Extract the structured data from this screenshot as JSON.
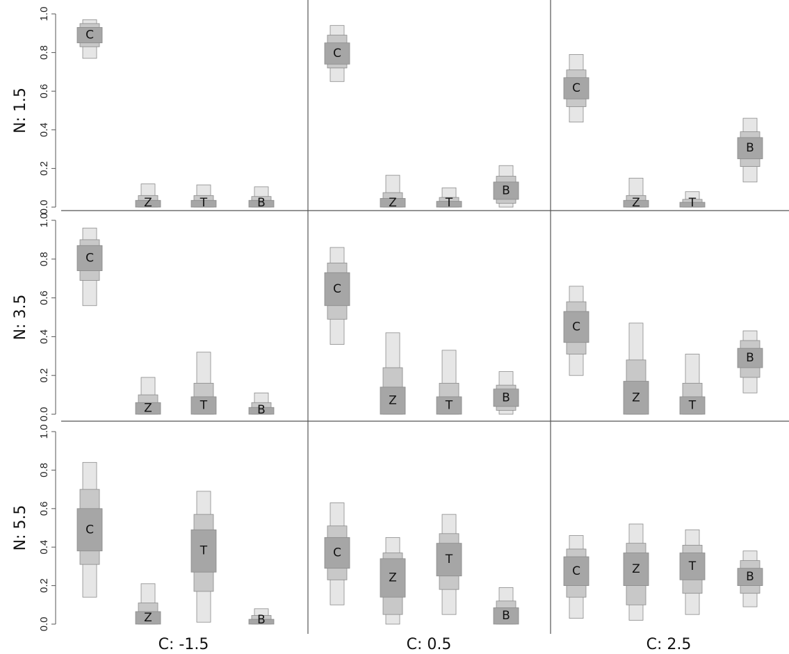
{
  "chart_data": {
    "type": "box-percentile-grid",
    "categories": [
      "C",
      "Z",
      "T",
      "B"
    ],
    "columns": [
      "C: -1.5",
      "C: 0.5",
      "C: 2.5"
    ],
    "rows": [
      "N: 1.5",
      "N: 3.5",
      "N: 5.5"
    ],
    "y_ticks": [
      "0.0",
      "0.2",
      "0.4",
      "0.6",
      "0.8",
      "1.0"
    ],
    "ylim": [
      0,
      1
    ],
    "colors": {
      "outer": "#e6e6e6",
      "middle": "#c8c8c8",
      "inner": "#a6a6a6",
      "stroke": "#8a8a8a",
      "divider": "#555555"
    },
    "panels": [
      [
        [
          {
            "label": "C",
            "outer": [
              0.77,
              0.97
            ],
            "middle": [
              0.83,
              0.95
            ],
            "inner": [
              0.85,
              0.93
            ]
          },
          {
            "label": "Z",
            "outer": [
              0.0,
              0.12
            ],
            "middle": [
              0.0,
              0.06
            ],
            "inner": [
              0.0,
              0.035
            ]
          },
          {
            "label": "T",
            "outer": [
              0.0,
              0.115
            ],
            "middle": [
              0.0,
              0.06
            ],
            "inner": [
              0.0,
              0.035
            ]
          },
          {
            "label": "B",
            "outer": [
              0.0,
              0.105
            ],
            "middle": [
              0.0,
              0.055
            ],
            "inner": [
              0.0,
              0.035
            ]
          }
        ],
        [
          {
            "label": "C",
            "outer": [
              0.65,
              0.94
            ],
            "middle": [
              0.72,
              0.89
            ],
            "inner": [
              0.74,
              0.85
            ]
          },
          {
            "label": "Z",
            "outer": [
              0.0,
              0.165
            ],
            "middle": [
              0.0,
              0.075
            ],
            "inner": [
              0.0,
              0.045
            ]
          },
          {
            "label": "T",
            "outer": [
              0.0,
              0.1
            ],
            "middle": [
              0.0,
              0.05
            ],
            "inner": [
              0.0,
              0.03
            ]
          },
          {
            "label": "B",
            "outer": [
              0.0,
              0.215
            ],
            "middle": [
              0.02,
              0.16
            ],
            "inner": [
              0.04,
              0.13
            ]
          }
        ],
        [
          {
            "label": "C",
            "outer": [
              0.44,
              0.79
            ],
            "middle": [
              0.52,
              0.71
            ],
            "inner": [
              0.56,
              0.67
            ]
          },
          {
            "label": "Z",
            "outer": [
              0.0,
              0.15
            ],
            "middle": [
              0.0,
              0.06
            ],
            "inner": [
              0.0,
              0.035
            ]
          },
          {
            "label": "T",
            "outer": [
              0.0,
              0.08
            ],
            "middle": [
              0.0,
              0.04
            ],
            "inner": [
              0.0,
              0.025
            ]
          },
          {
            "label": "B",
            "outer": [
              0.13,
              0.46
            ],
            "middle": [
              0.21,
              0.39
            ],
            "inner": [
              0.25,
              0.36
            ]
          }
        ]
      ],
      [
        [
          {
            "label": "C",
            "outer": [
              0.56,
              0.96
            ],
            "middle": [
              0.69,
              0.9
            ],
            "inner": [
              0.74,
              0.87
            ]
          },
          {
            "label": "Z",
            "outer": [
              0.0,
              0.19
            ],
            "middle": [
              0.0,
              0.1
            ],
            "inner": [
              0.0,
              0.06
            ]
          },
          {
            "label": "T",
            "outer": [
              0.0,
              0.32
            ],
            "middle": [
              0.0,
              0.16
            ],
            "inner": [
              0.0,
              0.09
            ]
          },
          {
            "label": "B",
            "outer": [
              0.0,
              0.11
            ],
            "middle": [
              0.0,
              0.06
            ],
            "inner": [
              0.0,
              0.035
            ]
          }
        ],
        [
          {
            "label": "C",
            "outer": [
              0.36,
              0.86
            ],
            "middle": [
              0.49,
              0.78
            ],
            "inner": [
              0.56,
              0.73
            ]
          },
          {
            "label": "Z",
            "outer": [
              0.0,
              0.42
            ],
            "middle": [
              0.0,
              0.24
            ],
            "inner": [
              0.0,
              0.14
            ]
          },
          {
            "label": "T",
            "outer": [
              0.0,
              0.33
            ],
            "middle": [
              0.0,
              0.16
            ],
            "inner": [
              0.0,
              0.09
            ]
          },
          {
            "label": "B",
            "outer": [
              0.0,
              0.22
            ],
            "middle": [
              0.02,
              0.15
            ],
            "inner": [
              0.04,
              0.13
            ]
          }
        ],
        [
          {
            "label": "C",
            "outer": [
              0.2,
              0.66
            ],
            "middle": [
              0.31,
              0.58
            ],
            "inner": [
              0.37,
              0.53
            ]
          },
          {
            "label": "Z",
            "outer": [
              0.0,
              0.47
            ],
            "middle": [
              0.0,
              0.28
            ],
            "inner": [
              0.0,
              0.17
            ]
          },
          {
            "label": "T",
            "outer": [
              0.0,
              0.31
            ],
            "middle": [
              0.0,
              0.16
            ],
            "inner": [
              0.0,
              0.09
            ]
          },
          {
            "label": "B",
            "outer": [
              0.11,
              0.43
            ],
            "middle": [
              0.19,
              0.38
            ],
            "inner": [
              0.24,
              0.34
            ]
          }
        ]
      ],
      [
        [
          {
            "label": "C",
            "outer": [
              0.14,
              0.84
            ],
            "middle": [
              0.31,
              0.7
            ],
            "inner": [
              0.38,
              0.6
            ]
          },
          {
            "label": "Z",
            "outer": [
              0.0,
              0.21
            ],
            "middle": [
              0.0,
              0.11
            ],
            "inner": [
              0.0,
              0.065
            ]
          },
          {
            "label": "T",
            "outer": [
              0.01,
              0.69
            ],
            "middle": [
              0.17,
              0.57
            ],
            "inner": [
              0.27,
              0.49
            ]
          },
          {
            "label": "B",
            "outer": [
              0.0,
              0.08
            ],
            "middle": [
              0.0,
              0.045
            ],
            "inner": [
              0.0,
              0.025
            ]
          }
        ],
        [
          {
            "label": "C",
            "outer": [
              0.1,
              0.63
            ],
            "middle": [
              0.23,
              0.51
            ],
            "inner": [
              0.29,
              0.45
            ]
          },
          {
            "label": "Z",
            "outer": [
              0.0,
              0.45
            ],
            "middle": [
              0.05,
              0.37
            ],
            "inner": [
              0.14,
              0.34
            ]
          },
          {
            "label": "T",
            "outer": [
              0.05,
              0.57
            ],
            "middle": [
              0.18,
              0.47
            ],
            "inner": [
              0.25,
              0.42
            ]
          },
          {
            "label": "B",
            "outer": [
              0.0,
              0.19
            ],
            "middle": [
              0.0,
              0.12
            ],
            "inner": [
              0.0,
              0.085
            ]
          }
        ],
        [
          {
            "label": "C",
            "outer": [
              0.03,
              0.46
            ],
            "middle": [
              0.14,
              0.39
            ],
            "inner": [
              0.2,
              0.35
            ]
          },
          {
            "label": "Z",
            "outer": [
              0.02,
              0.52
            ],
            "middle": [
              0.1,
              0.42
            ],
            "inner": [
              0.2,
              0.37
            ]
          },
          {
            "label": "T",
            "outer": [
              0.05,
              0.49
            ],
            "middle": [
              0.16,
              0.41
            ],
            "inner": [
              0.23,
              0.37
            ]
          },
          {
            "label": "B",
            "outer": [
              0.09,
              0.38
            ],
            "middle": [
              0.16,
              0.33
            ],
            "inner": [
              0.2,
              0.29
            ]
          }
        ]
      ]
    ]
  }
}
